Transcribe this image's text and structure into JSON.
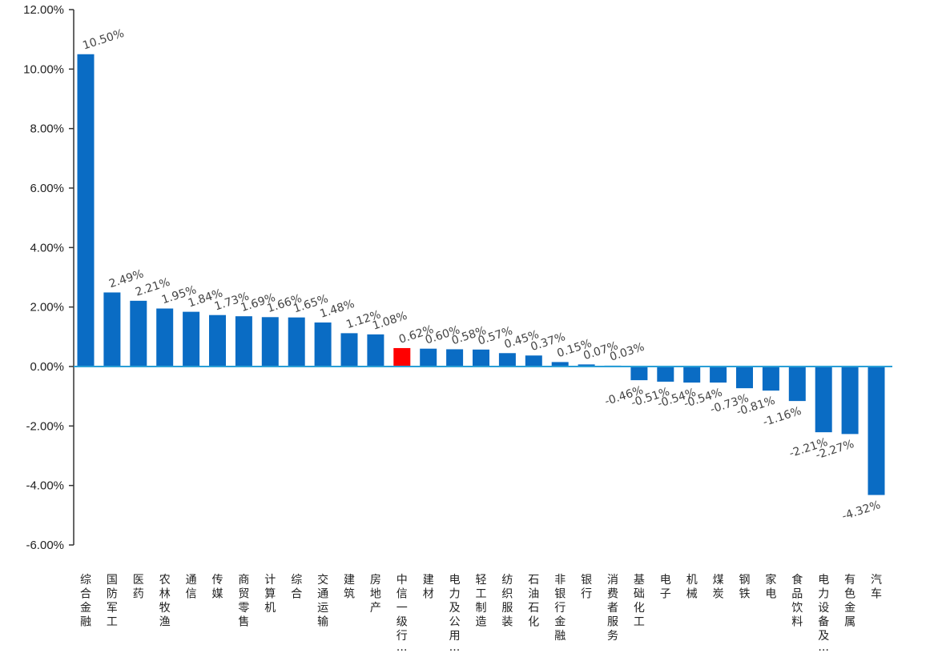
{
  "chart_data": {
    "type": "bar",
    "categories": [
      "综合金融",
      "国防军工",
      "医药",
      "农林牧渔",
      "通信",
      "传媒",
      "商贸零售",
      "计算机",
      "综合",
      "交通运输",
      "建筑",
      "房地产",
      "中信一级行…",
      "建材",
      "电力及公用…",
      "轻工制造",
      "纺织服装",
      "石油石化",
      "非银行金融",
      "银行",
      "消费者服务",
      "基础化工",
      "电子",
      "机械",
      "煤炭",
      "钢铁",
      "家电",
      "食品饮料",
      "电力设备及…",
      "有色金属",
      "汽车"
    ],
    "values": [
      10.5,
      2.49,
      2.21,
      1.95,
      1.84,
      1.73,
      1.69,
      1.66,
      1.65,
      1.48,
      1.12,
      1.08,
      0.62,
      0.6,
      0.58,
      0.57,
      0.45,
      0.37,
      0.15,
      0.07,
      0.03,
      -0.46,
      -0.51,
      -0.54,
      -0.54,
      -0.73,
      -0.81,
      -1.16,
      -2.21,
      -2.27,
      -4.32
    ],
    "data_labels": [
      "10.50%",
      "2.49%",
      "2.21%",
      "1.95%",
      "1.84%",
      "1.73%",
      "1.69%",
      "1.66%",
      "1.65%",
      "1.48%",
      "1.12%",
      "1.08%",
      "0.62%",
      "0.60%",
      "0.58%",
      "0.57%",
      "0.45%",
      "0.37%",
      "0.15%",
      "0.07%",
      "0.03%",
      "-0.46%",
      "-0.51%",
      "-0.54%",
      "-0.54%",
      "-0.73%",
      "-0.81%",
      "-1.16%",
      "-2.21%",
      "-2.27%",
      "-4.32%"
    ],
    "highlight_index": 12,
    "colors": {
      "bar": "#0a6cc4",
      "highlight": "#ff0000",
      "zero_line": "#2a9fd6",
      "axis": "#333333"
    },
    "ylim": [
      -6,
      12
    ],
    "yticks": [
      12,
      10,
      8,
      6,
      4,
      2,
      0,
      -2,
      -4,
      -6
    ],
    "ytick_labels": [
      "12.00%",
      "10.00%",
      "8.00%",
      "6.00%",
      "4.00%",
      "2.00%",
      "0.00%",
      "-2.00%",
      "-4.00%",
      "-6.00%"
    ],
    "title": "",
    "xlabel": "",
    "ylabel": "",
    "grid": false,
    "legend": "none"
  }
}
